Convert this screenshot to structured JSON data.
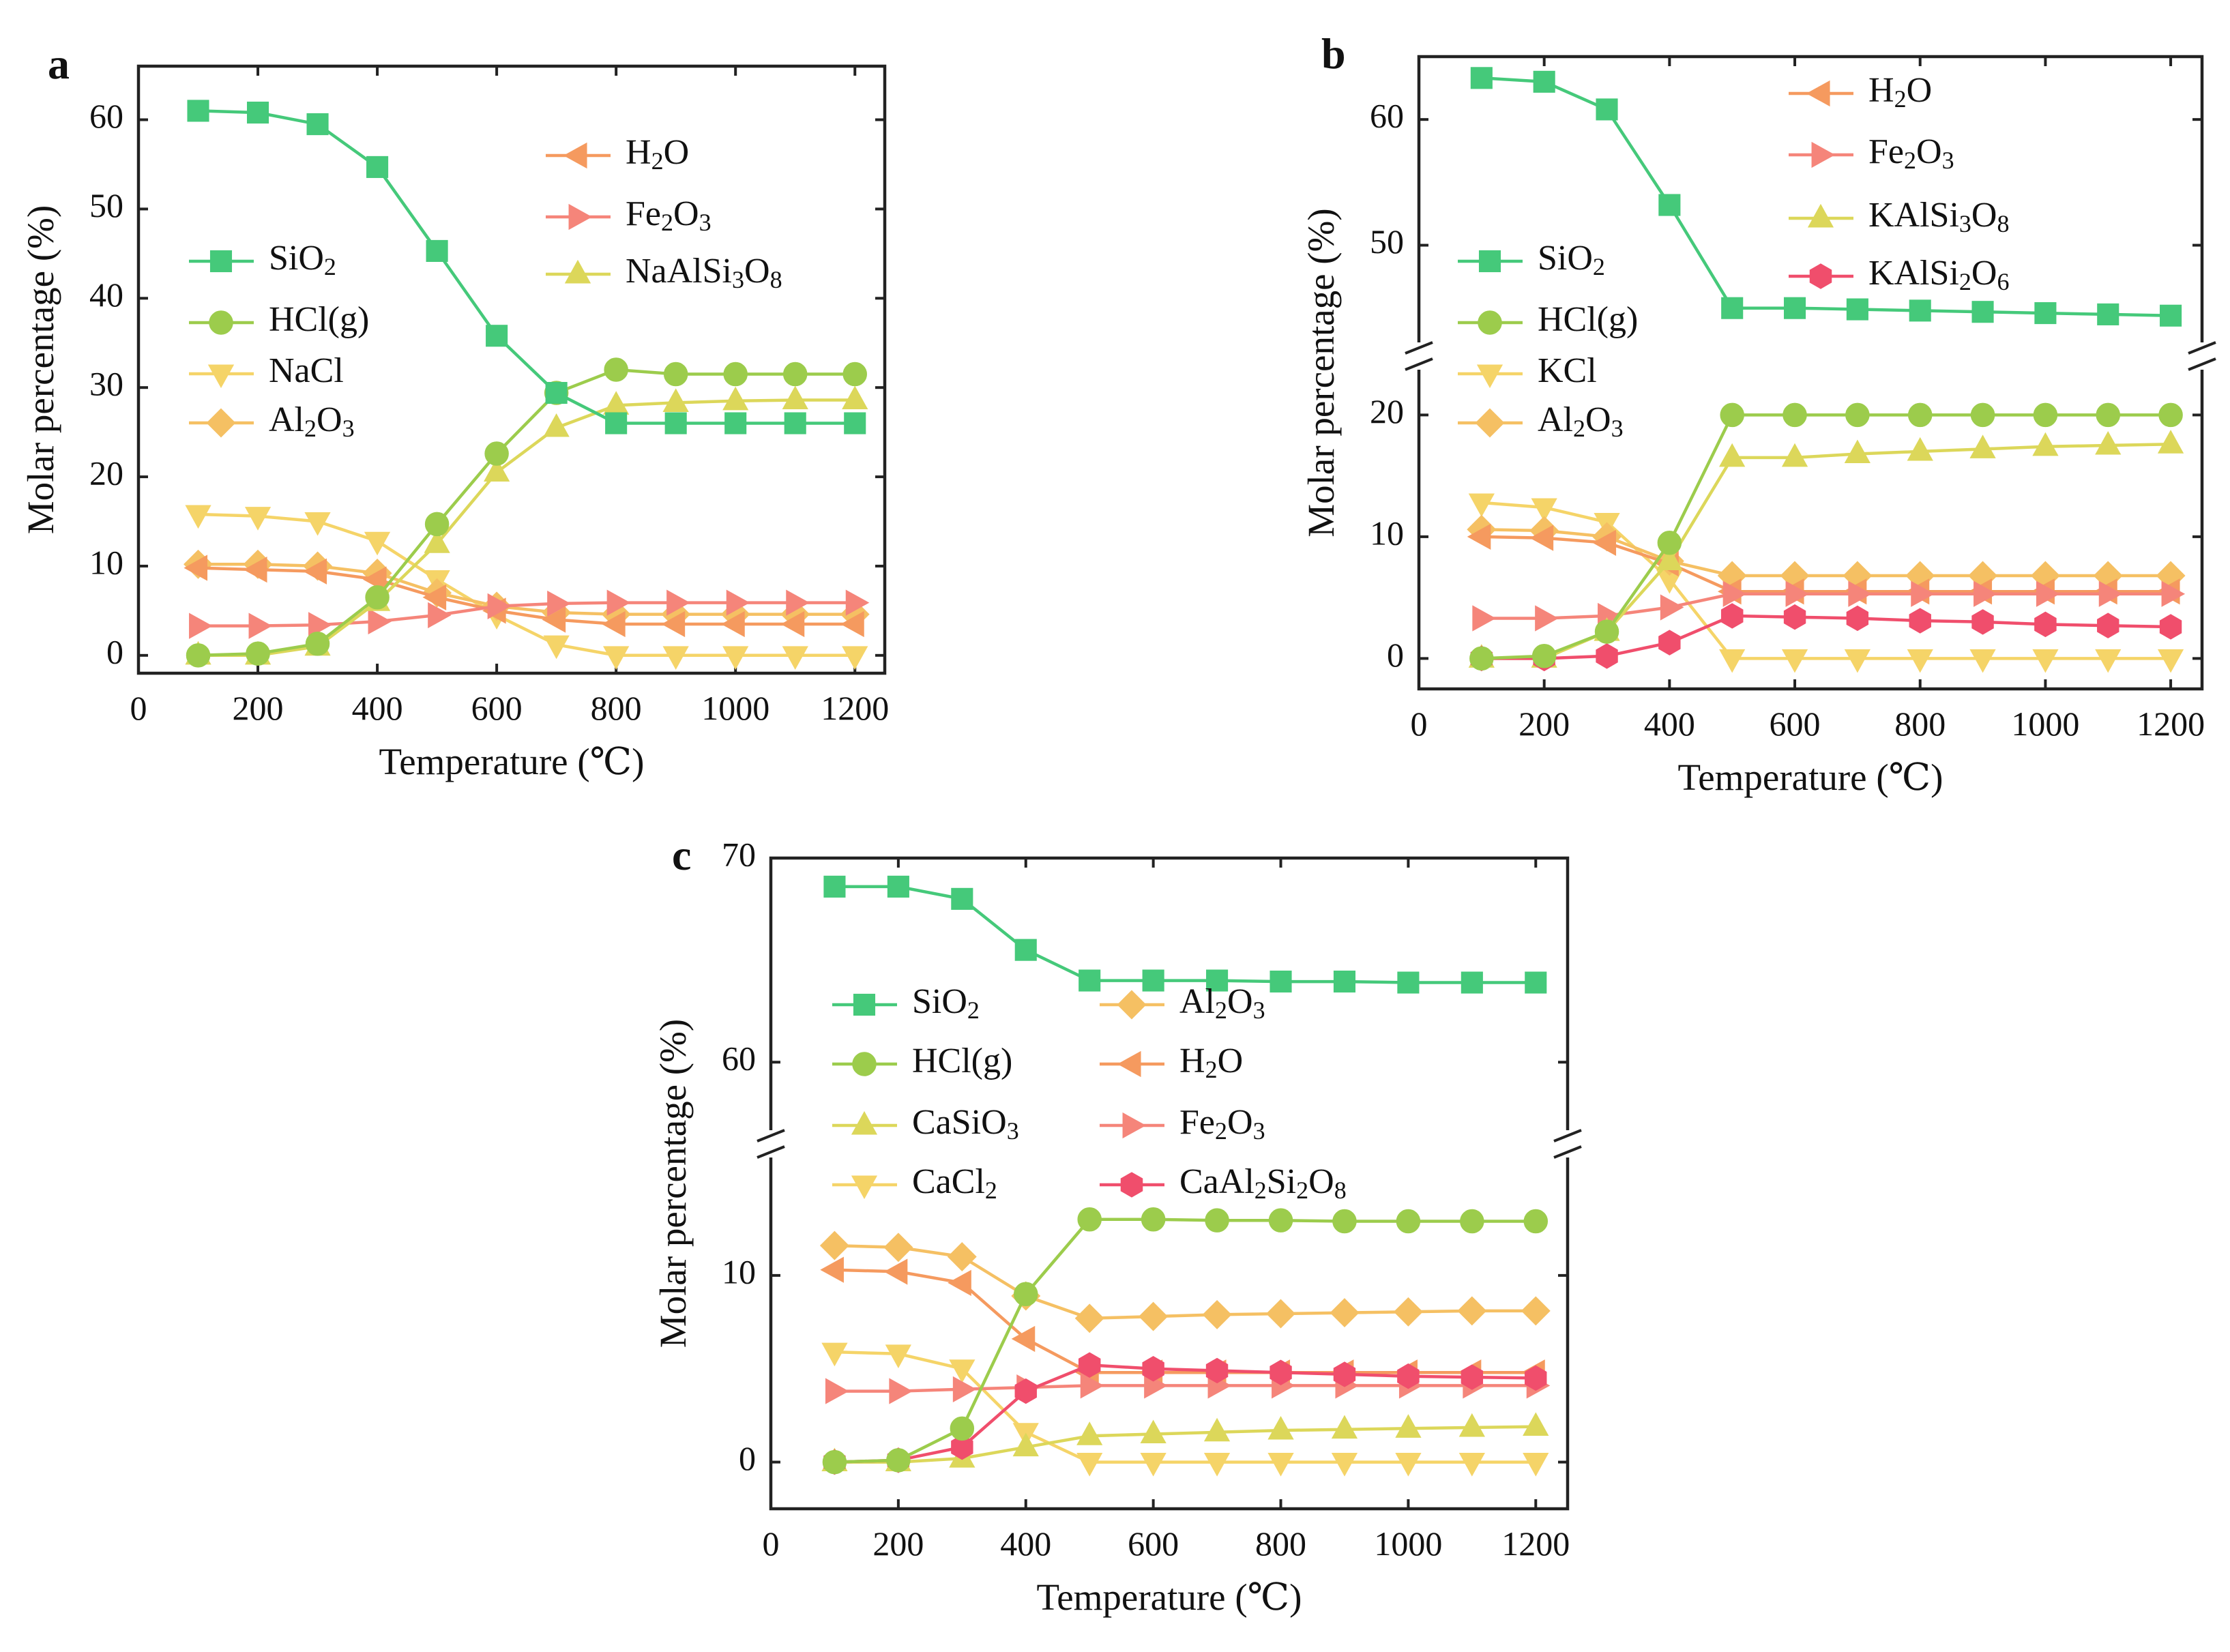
{
  "figure": {
    "panel_labels": [
      "a",
      "b",
      "c"
    ]
  },
  "series_styles": {
    "SiO2": {
      "color": "#45c97a",
      "marker": "square"
    },
    "HCl(g)": {
      "color": "#9ccc4c",
      "marker": "circle"
    },
    "NaCl": {
      "color": "#f5d468",
      "marker": "triangle-down"
    },
    "KCl": {
      "color": "#f5d468",
      "marker": "triangle-down"
    },
    "CaCl2": {
      "color": "#f5d468",
      "marker": "triangle-down"
    },
    "Al2O3": {
      "color": "#f5c063",
      "marker": "diamond"
    },
    "H2O": {
      "color": "#f59a5f",
      "marker": "triangle-left"
    },
    "Fe2O3": {
      "color": "#f5857a",
      "marker": "triangle-right"
    },
    "NaAlSi3O8": {
      "color": "#dcd75a",
      "marker": "triangle-up"
    },
    "KAlSi3O8": {
      "color": "#dcd75a",
      "marker": "triangle-up"
    },
    "CaSiO3": {
      "color": "#dcd75a",
      "marker": "triangle-up"
    },
    "KAlSi2O6": {
      "color": "#f04e6c",
      "marker": "hexagon"
    },
    "CaAl2Si2O8": {
      "color": "#f04e6c",
      "marker": "hexagon"
    }
  },
  "chart_data": [
    {
      "panel": "a",
      "type": "line",
      "xlabel": "Temperature (℃)",
      "ylabel": "Molar percentage (%)",
      "xlim": [
        0,
        1250
      ],
      "ylim": [
        -2,
        66
      ],
      "xticks": [
        0,
        200,
        400,
        600,
        800,
        1000,
        1200
      ],
      "yticks": [
        0,
        10,
        20,
        30,
        40,
        50,
        60
      ],
      "x": [
        100,
        200,
        300,
        400,
        500,
        600,
        700,
        800,
        900,
        1000,
        1100,
        1200
      ],
      "legend": [
        {
          "id": "H2O",
          "label": "H2O",
          "parts": [
            [
              "H",
              ""
            ],
            [
              "2",
              "sub"
            ],
            [
              "O",
              ""
            ]
          ]
        },
        {
          "id": "Fe2O3",
          "label": "Fe2O3",
          "parts": [
            [
              "Fe",
              ""
            ],
            [
              "2",
              "sub"
            ],
            [
              "O",
              ""
            ],
            [
              "3",
              "sub"
            ]
          ]
        },
        {
          "id": "NaAlSi3O8",
          "label": "NaAlSi3O8",
          "parts": [
            [
              "NaAlSi",
              ""
            ],
            [
              "3",
              "sub"
            ],
            [
              "O",
              ""
            ],
            [
              "8",
              "sub"
            ]
          ]
        },
        {
          "id": "SiO2",
          "label": "SiO2",
          "parts": [
            [
              "SiO",
              ""
            ],
            [
              "2",
              "sub"
            ]
          ]
        },
        {
          "id": "HCl(g)",
          "label": "HCl(g)",
          "parts": [
            [
              "HCl(g)",
              ""
            ]
          ]
        },
        {
          "id": "NaCl",
          "label": "NaCl",
          "parts": [
            [
              "NaCl",
              ""
            ]
          ]
        },
        {
          "id": "Al2O3",
          "label": "Al2O3",
          "parts": [
            [
              "Al",
              ""
            ],
            [
              "2",
              "sub"
            ],
            [
              "O",
              ""
            ],
            [
              "3",
              "sub"
            ]
          ]
        }
      ],
      "series": [
        {
          "name": "NaCl",
          "values": [
            15.8,
            15.6,
            15.0,
            12.8,
            8.5,
            4.5,
            1.2,
            0,
            0,
            0,
            0,
            0
          ]
        },
        {
          "name": "Al2O3",
          "values": [
            10.2,
            10.2,
            10.0,
            9.2,
            7.0,
            5.5,
            4.8,
            4.6,
            4.6,
            4.6,
            4.6,
            4.6
          ]
        },
        {
          "name": "H2O",
          "values": [
            9.8,
            9.6,
            9.4,
            8.5,
            6.5,
            5.0,
            4.0,
            3.5,
            3.5,
            3.5,
            3.5,
            3.5
          ]
        },
        {
          "name": "Fe2O3",
          "values": [
            3.3,
            3.3,
            3.4,
            3.8,
            4.5,
            5.5,
            5.8,
            5.9,
            5.9,
            5.9,
            5.9,
            5.9
          ]
        },
        {
          "name": "NaAlSi3O8",
          "values": [
            0,
            0,
            1.0,
            6.0,
            12.5,
            20.5,
            25.5,
            28.0,
            28.3,
            28.5,
            28.6,
            28.6
          ]
        },
        {
          "name": "HCl(g)",
          "values": [
            0,
            0.2,
            1.3,
            6.5,
            14.7,
            22.6,
            29.4,
            32.0,
            31.5,
            31.5,
            31.5,
            31.5
          ]
        },
        {
          "name": "SiO2",
          "values": [
            61.0,
            60.8,
            59.5,
            54.7,
            45.3,
            35.8,
            29.4,
            26.0,
            26.0,
            26.0,
            26.0,
            26.0
          ]
        }
      ]
    },
    {
      "panel": "b",
      "type": "line",
      "xlabel": "Temperature (℃)",
      "ylabel": "Molar percentage (%)",
      "xlim": [
        0,
        1250
      ],
      "axis_break": true,
      "ylim_lower": [
        -2.5,
        24
      ],
      "ylim_upper": [
        42,
        65
      ],
      "yticks_lower": [
        0,
        10,
        20
      ],
      "yticks_upper": [
        50,
        60
      ],
      "xticks": [
        0,
        200,
        400,
        600,
        800,
        1000,
        1200
      ],
      "x": [
        100,
        200,
        300,
        400,
        500,
        600,
        700,
        800,
        900,
        1000,
        1100,
        1200
      ],
      "legend": [
        {
          "id": "H2O",
          "label": "H2O",
          "parts": [
            [
              "H",
              ""
            ],
            [
              "2",
              "sub"
            ],
            [
              "O",
              ""
            ]
          ]
        },
        {
          "id": "Fe2O3",
          "label": "Fe2O3",
          "parts": [
            [
              "Fe",
              ""
            ],
            [
              "2",
              "sub"
            ],
            [
              "O",
              ""
            ],
            [
              "3",
              "sub"
            ]
          ]
        },
        {
          "id": "KAlSi3O8",
          "label": "KAlSi3O8",
          "parts": [
            [
              "KAlSi",
              ""
            ],
            [
              "3",
              "sub"
            ],
            [
              "O",
              ""
            ],
            [
              "8",
              "sub"
            ]
          ]
        },
        {
          "id": "KAlSi2O6",
          "label": "KAlSi2O6",
          "parts": [
            [
              "KAlSi",
              ""
            ],
            [
              "2",
              "sub"
            ],
            [
              "O",
              ""
            ],
            [
              "6",
              "sub"
            ]
          ]
        },
        {
          "id": "SiO2",
          "label": "SiO2",
          "parts": [
            [
              "SiO",
              ""
            ],
            [
              "2",
              "sub"
            ]
          ]
        },
        {
          "id": "HCl(g)",
          "label": "HCl(g)",
          "parts": [
            [
              "HCl(g)",
              ""
            ]
          ]
        },
        {
          "id": "KCl",
          "label": "KCl",
          "parts": [
            [
              "KCl",
              ""
            ]
          ]
        },
        {
          "id": "Al2O3",
          "label": "Al2O3",
          "parts": [
            [
              "Al",
              ""
            ],
            [
              "2",
              "sub"
            ],
            [
              "O",
              ""
            ],
            [
              "3",
              "sub"
            ]
          ]
        }
      ],
      "series": [
        {
          "name": "KCl",
          "values": [
            12.8,
            12.4,
            11.2,
            6.5,
            0,
            0,
            0,
            0,
            0,
            0,
            0,
            0
          ]
        },
        {
          "name": "Al2O3",
          "values": [
            10.6,
            10.5,
            10.0,
            8.0,
            6.8,
            6.8,
            6.8,
            6.8,
            6.8,
            6.8,
            6.8,
            6.8
          ]
        },
        {
          "name": "H2O",
          "values": [
            10.0,
            9.9,
            9.5,
            7.8,
            5.5,
            5.5,
            5.5,
            5.5,
            5.5,
            5.5,
            5.5,
            5.5
          ]
        },
        {
          "name": "Fe2O3",
          "values": [
            3.3,
            3.3,
            3.5,
            4.2,
            5.3,
            5.3,
            5.3,
            5.3,
            5.3,
            5.3,
            5.3,
            5.3
          ]
        },
        {
          "name": "KAlSi3O8",
          "values": [
            0,
            0,
            2.2,
            8.0,
            16.5,
            16.5,
            16.8,
            17.0,
            17.2,
            17.4,
            17.5,
            17.6
          ]
        },
        {
          "name": "KAlSi2O6",
          "values": [
            0,
            0,
            0.2,
            1.3,
            3.5,
            3.4,
            3.3,
            3.1,
            3.0,
            2.8,
            2.7,
            2.6
          ]
        },
        {
          "name": "HCl(g)",
          "values": [
            0,
            0.2,
            2.2,
            9.5,
            20.0,
            20.0,
            20.0,
            20.0,
            20.0,
            20.0,
            20.0,
            20.0
          ]
        },
        {
          "name": "SiO2",
          "values": [
            63.3,
            63.0,
            60.8,
            53.2,
            45.0,
            45.0,
            44.9,
            44.8,
            44.7,
            44.6,
            44.5,
            44.4
          ]
        }
      ]
    },
    {
      "panel": "c",
      "type": "line",
      "xlabel": "Temperature (℃)",
      "ylabel": "Molar percentage (%)",
      "xlim": [
        0,
        1250
      ],
      "axis_break": true,
      "ylim_lower": [
        -2.5,
        16.5
      ],
      "ylim_upper": [
        56.5,
        70
      ],
      "yticks_lower": [
        0,
        10
      ],
      "yticks_upper": [
        60,
        70
      ],
      "xticks": [
        0,
        200,
        400,
        600,
        800,
        1000,
        1200
      ],
      "x": [
        100,
        200,
        300,
        400,
        500,
        600,
        700,
        800,
        900,
        1000,
        1100,
        1200
      ],
      "legend": [
        {
          "id": "SiO2",
          "label": "SiO2",
          "parts": [
            [
              "SiO",
              ""
            ],
            [
              "2",
              "sub"
            ]
          ]
        },
        {
          "id": "HCl(g)",
          "label": "HCl(g)",
          "parts": [
            [
              "HCl(g)",
              ""
            ]
          ]
        },
        {
          "id": "CaSiO3",
          "label": "CaSiO3",
          "parts": [
            [
              "CaSiO",
              ""
            ],
            [
              "3",
              "sub"
            ]
          ]
        },
        {
          "id": "CaCl2",
          "label": "CaCl2",
          "parts": [
            [
              "CaCl",
              ""
            ],
            [
              "2",
              "sub"
            ]
          ]
        },
        {
          "id": "Al2O3",
          "label": "Al2O3",
          "parts": [
            [
              "Al",
              ""
            ],
            [
              "2",
              "sub"
            ],
            [
              "O",
              ""
            ],
            [
              "3",
              "sub"
            ]
          ]
        },
        {
          "id": "H2O",
          "label": "H2O",
          "parts": [
            [
              "H",
              ""
            ],
            [
              "2",
              "sub"
            ],
            [
              "O",
              ""
            ]
          ]
        },
        {
          "id": "Fe2O3",
          "label": "Fe2O3",
          "parts": [
            [
              "Fe",
              ""
            ],
            [
              "2",
              "sub"
            ],
            [
              "O",
              ""
            ],
            [
              "3",
              "sub"
            ]
          ]
        },
        {
          "id": "CaAl2Si2O8",
          "label": "CaAl2Si2O8",
          "parts": [
            [
              "CaAl",
              ""
            ],
            [
              "2",
              "sub"
            ],
            [
              "Si",
              ""
            ],
            [
              "2",
              "sub"
            ],
            [
              "O",
              ""
            ],
            [
              "8",
              "sub"
            ]
          ]
        }
      ],
      "series": [
        {
          "name": "CaCl2",
          "values": [
            5.9,
            5.8,
            5.0,
            1.6,
            0,
            0,
            0,
            0,
            0,
            0,
            0,
            0
          ]
        },
        {
          "name": "Al2O3",
          "values": [
            11.6,
            11.5,
            11.0,
            8.9,
            7.7,
            7.8,
            7.9,
            7.95,
            8.0,
            8.05,
            8.1,
            8.1
          ]
        },
        {
          "name": "H2O",
          "values": [
            10.3,
            10.2,
            9.6,
            6.6,
            4.8,
            4.8,
            4.8,
            4.8,
            4.8,
            4.8,
            4.8,
            4.8
          ]
        },
        {
          "name": "Fe2O3",
          "values": [
            3.8,
            3.8,
            3.9,
            4.0,
            4.1,
            4.1,
            4.1,
            4.1,
            4.1,
            4.1,
            4.1,
            4.1
          ]
        },
        {
          "name": "CaSiO3",
          "values": [
            0,
            0,
            0.2,
            0.8,
            1.4,
            1.5,
            1.6,
            1.7,
            1.75,
            1.8,
            1.85,
            1.9
          ]
        },
        {
          "name": "CaAl2Si2O8",
          "values": [
            0,
            0.1,
            0.8,
            3.8,
            5.2,
            5.0,
            4.9,
            4.8,
            4.7,
            4.6,
            4.55,
            4.5
          ]
        },
        {
          "name": "HCl(g)",
          "values": [
            0,
            0.1,
            1.8,
            9.0,
            13.0,
            13.0,
            12.95,
            12.95,
            12.9,
            12.9,
            12.9,
            12.9
          ]
        },
        {
          "name": "SiO2",
          "values": [
            68.6,
            68.6,
            68.0,
            65.5,
            64.0,
            64.0,
            64.0,
            63.95,
            63.95,
            63.9,
            63.9,
            63.9
          ]
        }
      ]
    }
  ]
}
